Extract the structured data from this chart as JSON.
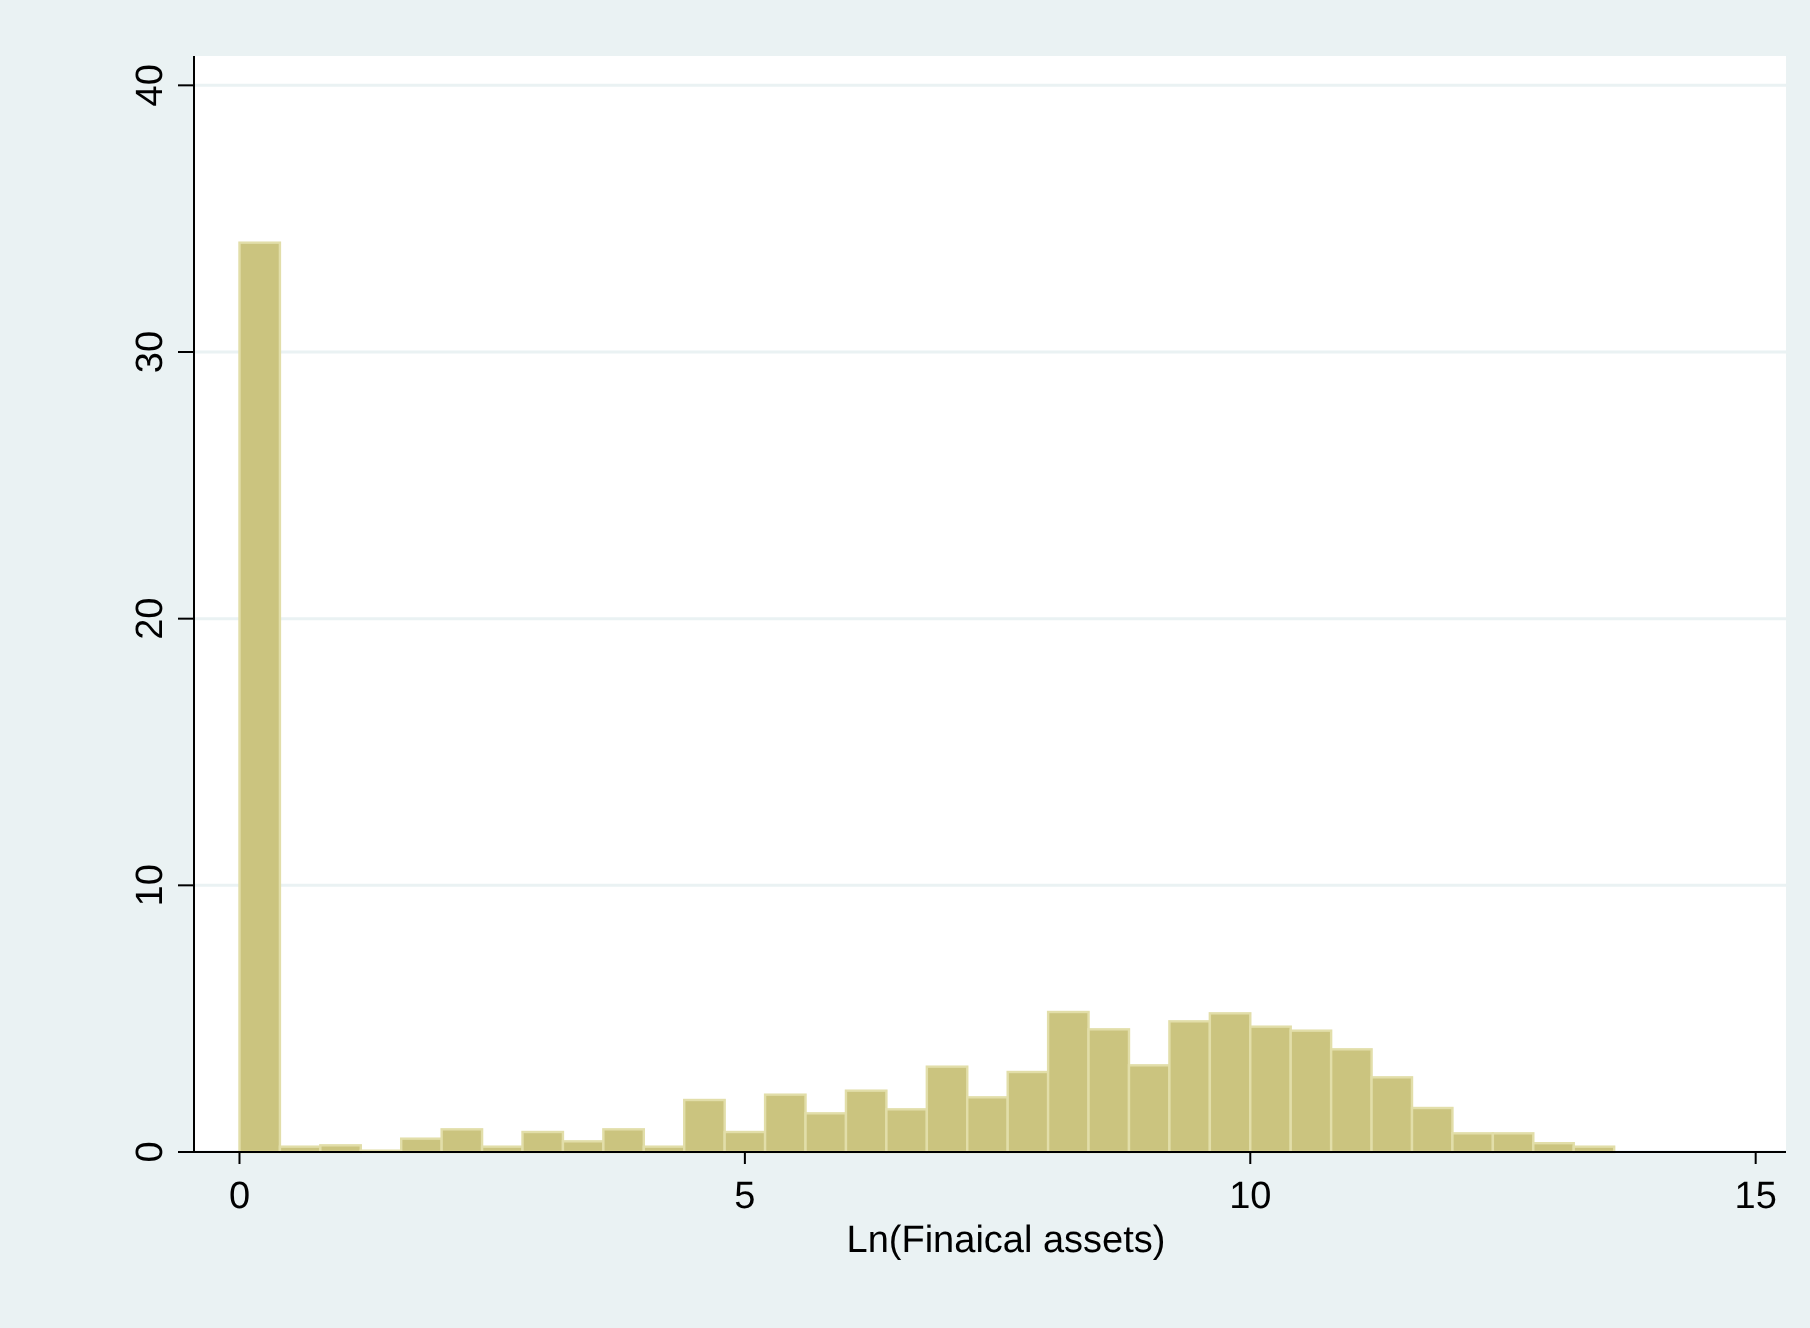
{
  "chart_data": {
    "type": "histogram",
    "xlabel": "Ln(Finaical assets)",
    "bins": [
      0,
      0.4,
      0.8,
      1.2,
      1.6,
      2.0,
      2.4,
      2.8,
      3.2,
      3.6,
      4.0,
      4.4,
      4.8,
      5.2,
      5.6,
      6.0,
      6.4,
      6.8,
      7.2,
      7.6,
      8.0,
      8.4,
      8.8,
      9.2,
      9.6,
      10.0,
      10.4,
      10.8,
      11.2,
      11.6,
      12.0,
      12.4,
      12.8,
      13.2,
      13.6
    ],
    "values": [
      34.1,
      0.2,
      0.25,
      0.05,
      0.5,
      0.85,
      0.2,
      0.75,
      0.4,
      0.85,
      0.2,
      1.95,
      0.75,
      2.15,
      1.45,
      2.3,
      1.6,
      3.2,
      2.05,
      3.0,
      5.25,
      4.6,
      3.25,
      4.9,
      5.2,
      4.7,
      4.55,
      3.85,
      2.8,
      1.65,
      0.7,
      0.7,
      0.33,
      0.2
    ],
    "color": "#cbc47f",
    "xlim": [
      -0.45,
      15.3
    ],
    "xticks": [
      0,
      5,
      10,
      15
    ],
    "ylim": [
      0,
      41.1
    ],
    "yticks": [
      0,
      10,
      20,
      30,
      40
    ],
    "grid": "y"
  }
}
